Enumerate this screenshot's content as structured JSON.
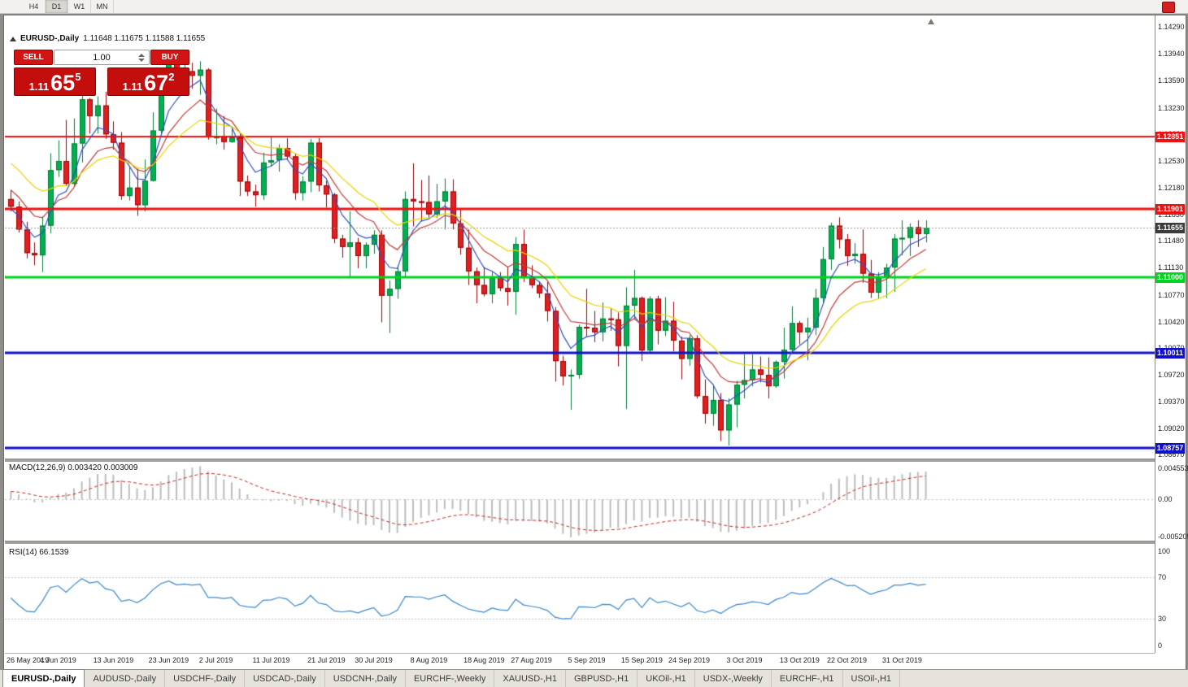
{
  "period_buttons": [
    "H4",
    "D1",
    "W1",
    "MN"
  ],
  "active_period": "D1",
  "header": {
    "symbol": "EURUSD-,Daily",
    "ohlc": "1.11648 1.11675 1.11588 1.11655"
  },
  "trade_panel": {
    "sell_label": "SELL",
    "buy_label": "BUY",
    "volume": "1.00",
    "sell_price": {
      "prefix": "1.11",
      "main": "65",
      "sup": "5"
    },
    "buy_price": {
      "prefix": "1.11",
      "main": "67",
      "sup": "2"
    }
  },
  "price_scale": {
    "ticks": [
      "1.14290",
      "1.13940",
      "1.13590",
      "1.13230",
      "1.12880",
      "1.12530",
      "1.12180",
      "1.11830",
      "1.11480",
      "1.11130",
      "1.10770",
      "1.10420",
      "1.10070",
      "1.09720",
      "1.09370",
      "1.09020",
      "1.08670"
    ]
  },
  "current_price": {
    "value": 1.11655,
    "label": "1.11655",
    "color": "#3c3c3c"
  },
  "macd": {
    "label": "MACD(12,26,9) 0.003420 0.003009",
    "scale": [
      "0.0045536",
      "0.00",
      "-0.0052050"
    ]
  },
  "rsi": {
    "label": "RSI(14) 66.1539",
    "scale": [
      "100",
      "70",
      "30",
      "0"
    ]
  },
  "tabs": [
    "EURUSD-,Daily",
    "AUDUSD-,Daily",
    "USDCHF-,Daily",
    "USDCAD-,Daily",
    "USDCNH-,Daily",
    "EURCHF-,Weekly",
    "XAUUSD-,H1",
    "GBPUSD-,H1",
    "UKOil-,H1",
    "USDX-,Weekly",
    "EURCHF-,H1",
    "USOil-,H1"
  ],
  "chart_data": [
    {
      "type": "candlestick",
      "title": "EURUSD-,Daily",
      "ylim": [
        1.0862,
        1.144
      ],
      "bull_color": "#00b050",
      "bear_color": "#e02020",
      "x_tick_labels": [
        "26 May 2019",
        "4 Jun 2019",
        "13 Jun 2019",
        "23 Jun 2019",
        "2 Jul 2019",
        "11 Jul 2019",
        "21 Jul 2019",
        "30 Jul 2019",
        "8 Aug 2019",
        "18 Aug 2019",
        "27 Aug 2019",
        "5 Sep 2019",
        "15 Sep 2019",
        "24 Sep 2019",
        "3 Oct 2019",
        "13 Oct 2019",
        "22 Oct 2019",
        "31 Oct 2019"
      ],
      "x_tick_indices": [
        0,
        6,
        13,
        20,
        26,
        33,
        40,
        46,
        53,
        60,
        66,
        73,
        80,
        86,
        93,
        100,
        106,
        113
      ],
      "hlines": [
        {
          "value": 1.12851,
          "label": "1.12851",
          "color": "#ee1111",
          "width": 2
        },
        {
          "value": 1.11901,
          "label": "1.11901",
          "color": "#ee1111",
          "width": 3
        },
        {
          "value": 1.11,
          "label": "1.11000",
          "color": "#00d41e",
          "width": 3
        },
        {
          "value": 1.10011,
          "label": "1.10011",
          "color": "#1111cc",
          "width": 3
        },
        {
          "value": 1.08757,
          "label": "1.08757",
          "color": "#1111cc",
          "width": 3
        }
      ],
      "overlays": [
        {
          "name": "ma-fast",
          "type": "ema",
          "period": 5,
          "seed": 1.119,
          "color": "#2e4fc4"
        },
        {
          "name": "ma-medium",
          "type": "ema",
          "period": 10,
          "seed": 1.1215,
          "color": "#c03a3a"
        },
        {
          "name": "ma-slow",
          "type": "ema",
          "period": 18,
          "seed": 1.125,
          "color": "#e8d400"
        }
      ],
      "candles": [
        [
          1.1203,
          1.1215,
          1.1187,
          1.1193
        ],
        [
          1.1193,
          1.12,
          1.1159,
          1.1163
        ],
        [
          1.1163,
          1.1173,
          1.1125,
          1.1132
        ],
        [
          1.1132,
          1.1146,
          1.1116,
          1.1129
        ],
        [
          1.1129,
          1.118,
          1.1107,
          1.1168
        ],
        [
          1.1168,
          1.1263,
          1.1158,
          1.1241
        ],
        [
          1.1241,
          1.128,
          1.1232,
          1.1253
        ],
        [
          1.1253,
          1.1307,
          1.122,
          1.1223
        ],
        [
          1.1223,
          1.1309,
          1.1219,
          1.1276
        ],
        [
          1.1276,
          1.1348,
          1.1251,
          1.1334
        ],
        [
          1.1334,
          1.1336,
          1.1289,
          1.1312
        ],
        [
          1.1312,
          1.1338,
          1.1289,
          1.1326
        ],
        [
          1.1326,
          1.1344,
          1.1282,
          1.1288
        ],
        [
          1.1288,
          1.1305,
          1.1268,
          1.1277
        ],
        [
          1.1277,
          1.1291,
          1.1202,
          1.1207
        ],
        [
          1.1207,
          1.1246,
          1.1201,
          1.1218
        ],
        [
          1.1218,
          1.1243,
          1.1181,
          1.1195
        ],
        [
          1.1195,
          1.1255,
          1.1187,
          1.1227
        ],
        [
          1.1227,
          1.1317,
          1.1226,
          1.1293
        ],
        [
          1.1293,
          1.137,
          1.1288,
          1.1355
        ],
        [
          1.1355,
          1.1392,
          1.1345,
          1.1386
        ],
        [
          1.1386,
          1.1396,
          1.1344,
          1.1362
        ],
        [
          1.1362,
          1.1385,
          1.1351,
          1.1371
        ],
        [
          1.1371,
          1.1382,
          1.1348,
          1.1365
        ],
        [
          1.1365,
          1.1384,
          1.134,
          1.1373
        ],
        [
          1.1373,
          1.1375,
          1.1281,
          1.1285
        ],
        [
          1.1285,
          1.1322,
          1.1275,
          1.1285
        ],
        [
          1.1285,
          1.1312,
          1.1268,
          1.1278
        ],
        [
          1.1278,
          1.1295,
          1.1277,
          1.1284
        ],
        [
          1.1284,
          1.1289,
          1.1207,
          1.1226
        ],
        [
          1.1226,
          1.1234,
          1.1207,
          1.1213
        ],
        [
          1.1213,
          1.1222,
          1.1193,
          1.1208
        ],
        [
          1.1208,
          1.1264,
          1.1202,
          1.1251
        ],
        [
          1.1251,
          1.1285,
          1.1246,
          1.1254
        ],
        [
          1.1254,
          1.1275,
          1.1239,
          1.127
        ],
        [
          1.127,
          1.1283,
          1.1254,
          1.1259
        ],
        [
          1.1259,
          1.1263,
          1.1202,
          1.1211
        ],
        [
          1.1211,
          1.1233,
          1.1201,
          1.1226
        ],
        [
          1.1226,
          1.1282,
          1.1212,
          1.1277
        ],
        [
          1.1277,
          1.1283,
          1.1213,
          1.1221
        ],
        [
          1.1221,
          1.1227,
          1.1192,
          1.1209
        ],
        [
          1.1209,
          1.1211,
          1.1145,
          1.1151
        ],
        [
          1.1151,
          1.1156,
          1.1126,
          1.114
        ],
        [
          1.114,
          1.1187,
          1.1101,
          1.1146
        ],
        [
          1.1146,
          1.1152,
          1.1112,
          1.1128
        ],
        [
          1.1128,
          1.1146,
          1.1112,
          1.1143
        ],
        [
          1.1143,
          1.1162,
          1.1131,
          1.1156
        ],
        [
          1.1156,
          1.1162,
          1.1041,
          1.1076
        ],
        [
          1.1076,
          1.1096,
          1.1027,
          1.1085
        ],
        [
          1.1085,
          1.1116,
          1.1072,
          1.1108
        ],
        [
          1.1108,
          1.1213,
          1.1101,
          1.1203
        ],
        [
          1.1203,
          1.125,
          1.1167,
          1.12
        ],
        [
          1.12,
          1.1228,
          1.1174,
          1.1199
        ],
        [
          1.1199,
          1.1234,
          1.1178,
          1.1183
        ],
        [
          1.1183,
          1.1223,
          1.1178,
          1.12
        ],
        [
          1.12,
          1.123,
          1.1163,
          1.1213
        ],
        [
          1.1213,
          1.1229,
          1.1163,
          1.1171
        ],
        [
          1.1171,
          1.1191,
          1.113,
          1.1139
        ],
        [
          1.1139,
          1.1163,
          1.109,
          1.1108
        ],
        [
          1.1108,
          1.1113,
          1.1066,
          1.109
        ],
        [
          1.109,
          1.1114,
          1.1075,
          1.1078
        ],
        [
          1.1078,
          1.1107,
          1.1066,
          1.11
        ],
        [
          1.11,
          1.1107,
          1.1082,
          1.1086
        ],
        [
          1.1086,
          1.1113,
          1.1063,
          1.1081
        ],
        [
          1.1081,
          1.1153,
          1.1051,
          1.1144
        ],
        [
          1.1144,
          1.1163,
          1.1094,
          1.1101
        ],
        [
          1.1101,
          1.1116,
          1.1086,
          1.109
        ],
        [
          1.109,
          1.1095,
          1.1073,
          1.1079
        ],
        [
          1.1079,
          1.1094,
          1.1042,
          1.1056
        ],
        [
          1.1056,
          1.1061,
          1.0963,
          1.099
        ],
        [
          1.099,
          1.0997,
          1.0958,
          1.097
        ],
        [
          1.097,
          1.0979,
          1.0926,
          1.0972
        ],
        [
          1.0972,
          1.1038,
          1.0967,
          1.1035
        ],
        [
          1.1035,
          1.1085,
          1.1022,
          1.1034
        ],
        [
          1.1034,
          1.1056,
          1.1015,
          1.1028
        ],
        [
          1.1028,
          1.1067,
          1.1016,
          1.1046
        ],
        [
          1.1046,
          1.1059,
          1.103,
          1.1045
        ],
        [
          1.1045,
          1.1054,
          1.0983,
          1.101
        ],
        [
          1.101,
          1.1087,
          1.0927,
          1.1063
        ],
        [
          1.1063,
          1.111,
          1.1045,
          1.1073
        ],
        [
          1.1073,
          1.1075,
          1.099,
          1.1004
        ],
        [
          1.1004,
          1.1075,
          1.1001,
          1.1072
        ],
        [
          1.1072,
          1.1076,
          1.1012,
          1.103
        ],
        [
          1.103,
          1.1074,
          1.1023,
          1.1043
        ],
        [
          1.1043,
          1.1068,
          1.1003,
          1.1017
        ],
        [
          1.1017,
          1.1022,
          1.0966,
          1.0993
        ],
        [
          1.0993,
          1.1024,
          1.0984,
          1.102
        ],
        [
          1.102,
          1.1024,
          1.0941,
          1.0944
        ],
        [
          1.0944,
          1.0966,
          1.0908,
          1.0921
        ],
        [
          1.0921,
          1.0958,
          1.0905,
          1.0939
        ],
        [
          1.0939,
          1.0948,
          1.0885,
          1.0899
        ],
        [
          1.0899,
          1.0941,
          1.0879,
          1.0933
        ],
        [
          1.0933,
          1.0964,
          1.0903,
          1.0959
        ],
        [
          1.0959,
          1.0999,
          1.0941,
          1.0965
        ],
        [
          1.0965,
          1.0999,
          1.0957,
          1.0979
        ],
        [
          1.0979,
          1.0996,
          1.0962,
          1.0972
        ],
        [
          1.0972,
          1.0995,
          1.0941,
          1.0957
        ],
        [
          1.0957,
          1.0991,
          1.0955,
          1.0989
        ],
        [
          1.0989,
          1.1034,
          1.0967,
          1.1005
        ],
        [
          1.1005,
          1.1062,
          1.1002,
          1.104
        ],
        [
          1.104,
          1.1043,
          1.1012,
          1.1028
        ],
        [
          1.1028,
          1.1047,
          1.0991,
          1.1034
        ],
        [
          1.1034,
          1.1085,
          1.1024,
          1.1073
        ],
        [
          1.1073,
          1.114,
          1.1065,
          1.1124
        ],
        [
          1.1124,
          1.1172,
          1.111,
          1.1168
        ],
        [
          1.1168,
          1.1179,
          1.1138,
          1.115
        ],
        [
          1.115,
          1.1157,
          1.1115,
          1.1128
        ],
        [
          1.1128,
          1.1145,
          1.1118,
          1.1131
        ],
        [
          1.1131,
          1.1163,
          1.1093,
          1.1105
        ],
        [
          1.1105,
          1.1123,
          1.1073,
          1.108
        ],
        [
          1.108,
          1.1107,
          1.1072,
          1.11
        ],
        [
          1.11,
          1.1118,
          1.1073,
          1.1113
        ],
        [
          1.1113,
          1.1157,
          1.1081,
          1.1151
        ],
        [
          1.1151,
          1.1175,
          1.1129,
          1.1152
        ],
        [
          1.1152,
          1.1171,
          1.1128,
          1.1166
        ],
        [
          1.1166,
          1.1175,
          1.114,
          1.1157
        ],
        [
          1.1157,
          1.1175,
          1.1146,
          1.1165
        ]
      ]
    },
    {
      "type": "bar",
      "name": "MACD(12,26,9)",
      "params": {
        "fast": 12,
        "slow": 26,
        "signal": 9,
        "seed_fast": 1.12,
        "seed_slow": 1.119
      },
      "ylim": [
        -0.00521,
        0.00455
      ],
      "hist_color": "#bdbdbd",
      "signal_color": "#cc2222",
      "current_values": [
        0.00342,
        0.003009
      ]
    },
    {
      "type": "line",
      "name": "RSI(14)",
      "period": 14,
      "seed_avg_gain": 0.0007,
      "seed_avg_loss": 0.0007,
      "ylim": [
        0,
        100
      ],
      "levels": [
        70,
        30
      ],
      "color": "#3a87c8",
      "current_value": 66.1539
    }
  ]
}
